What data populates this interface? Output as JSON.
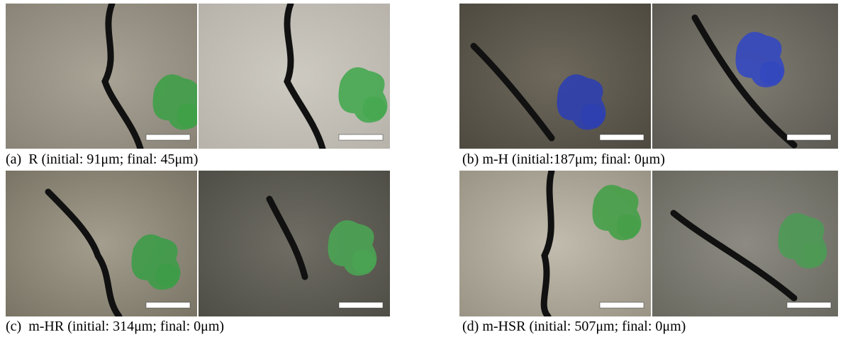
{
  "panels": [
    {
      "label": "(a)",
      "caption": "R (initial: 91μm; final: 45μm)"
    },
    {
      "label": "(b)",
      "caption": "m-H (initial:187μm; final: 0μm)"
    },
    {
      "label": "(c)",
      "caption": "m-HR (initial: 314μm; final: 0μm)"
    },
    {
      "label": "(d)",
      "caption": "m-HSR (initial: 507μm; final: 0μm)"
    }
  ]
}
